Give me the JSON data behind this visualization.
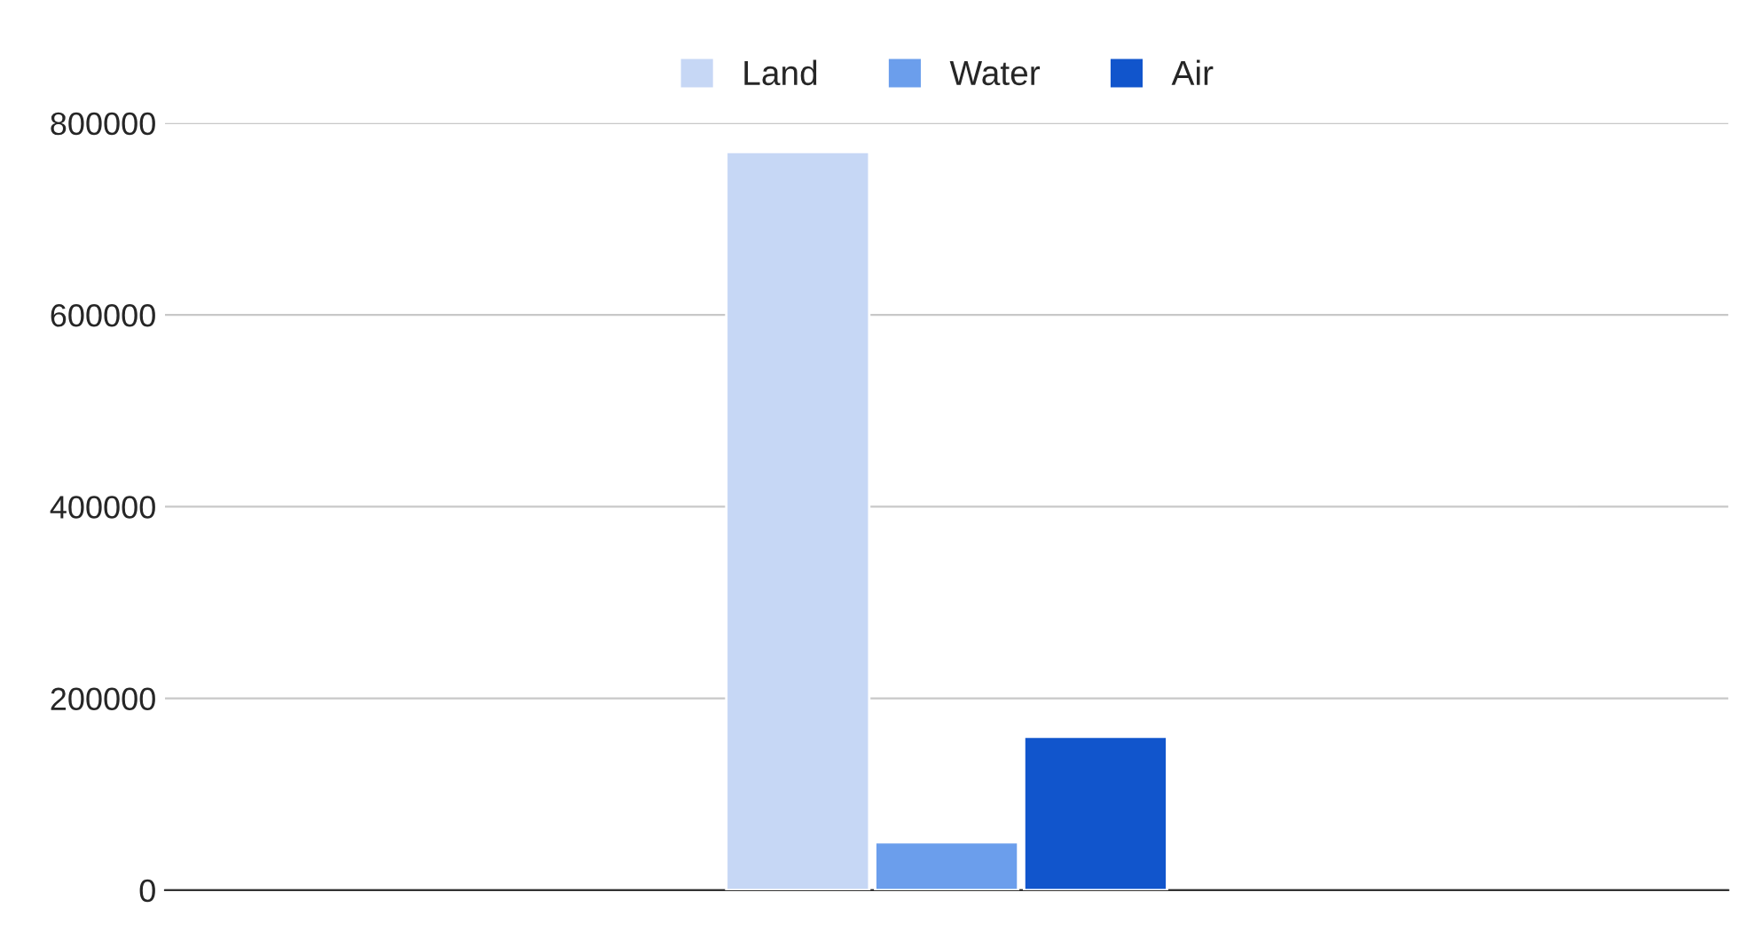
{
  "chart_data": {
    "type": "bar",
    "categories": [
      null
    ],
    "series": [
      {
        "name": "Land",
        "color": "#c6d7f5",
        "values": [
          770000
        ]
      },
      {
        "name": "Water",
        "color": "#6b9eec",
        "values": [
          50000
        ]
      },
      {
        "name": "Air",
        "color": "#1155cc",
        "values": [
          160000
        ]
      }
    ],
    "ylim": [
      0,
      800000
    ],
    "yticks": [
      0,
      200000,
      400000,
      600000,
      800000
    ],
    "grid": "y",
    "legend": "top"
  }
}
